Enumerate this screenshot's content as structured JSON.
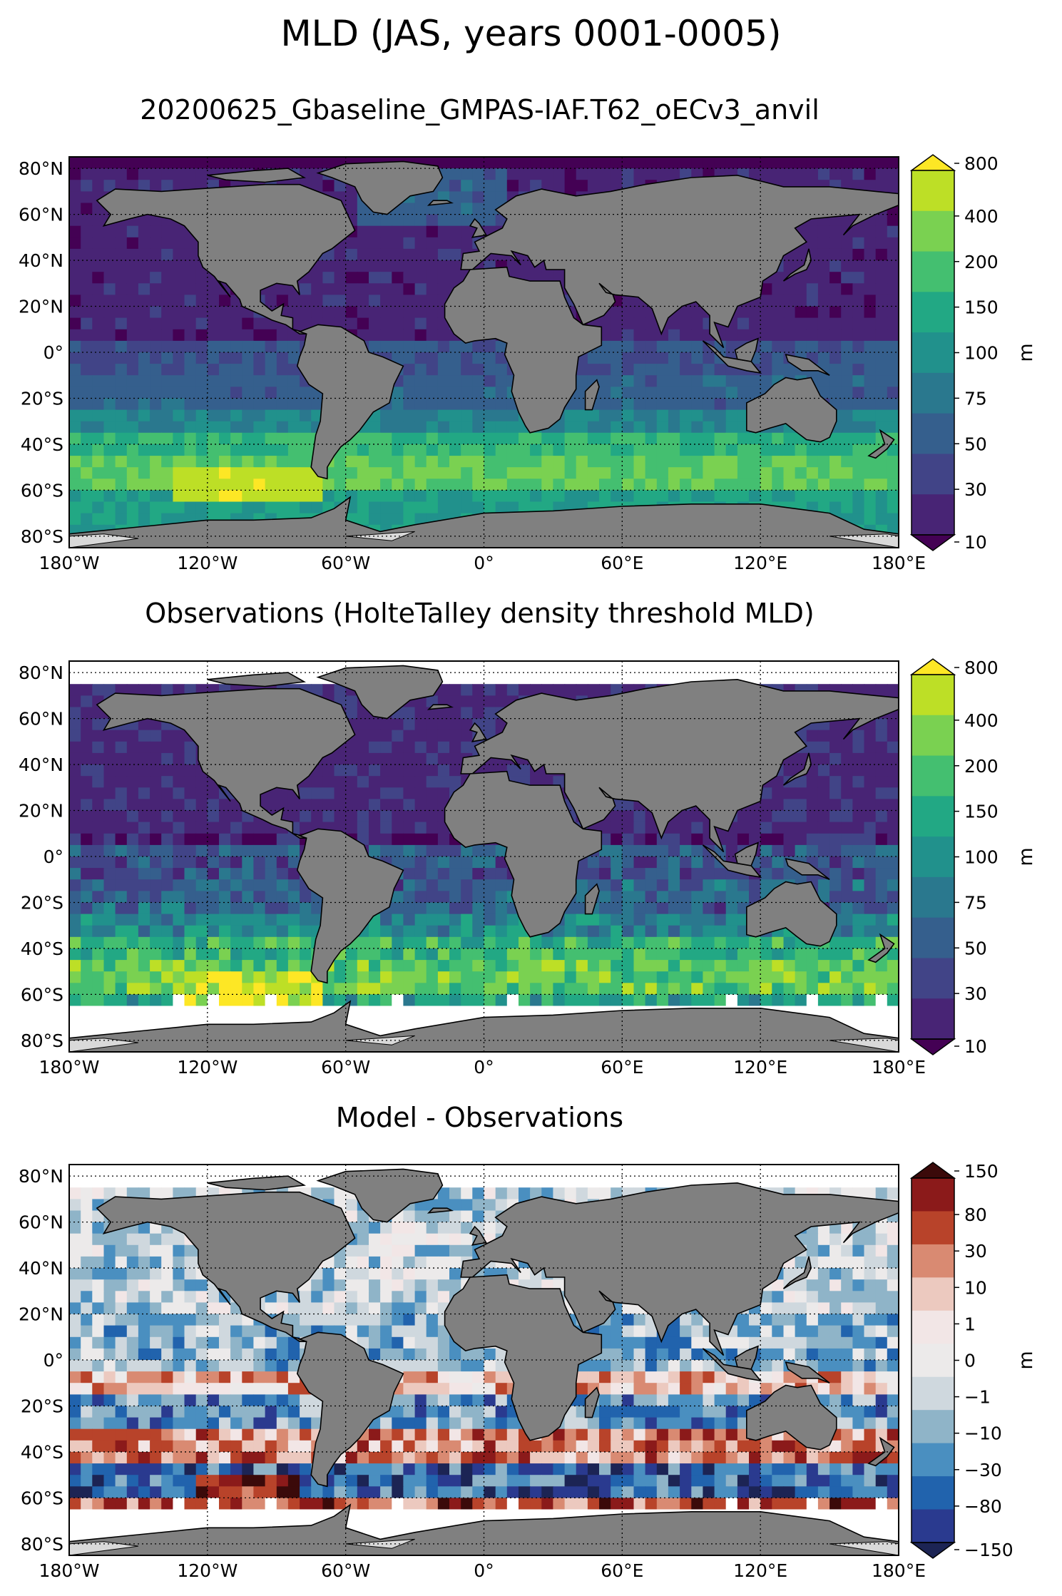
{
  "figure": {
    "title": "MLD (JAS, years 0001-0005)"
  },
  "panels": [
    {
      "title": "20200625_Gbaseline_GMPAS-IAF.T62_oECv3_anvil",
      "kind": "model",
      "colorbar": {
        "label": "m",
        "ticks": [
          "800",
          "400",
          "200",
          "150",
          "100",
          "75",
          "50",
          "30",
          "10"
        ],
        "colors": [
          "#fde725",
          "#bddf26",
          "#7ad151",
          "#44bf70",
          "#22a884",
          "#21918c",
          "#2a788e",
          "#355f8d",
          "#414487",
          "#482475",
          "#440154"
        ]
      }
    },
    {
      "title": "Observations (HolteTalley density threshold MLD)",
      "kind": "obs",
      "colorbar": {
        "label": "m",
        "ticks": [
          "800",
          "400",
          "200",
          "150",
          "100",
          "75",
          "50",
          "30",
          "10"
        ],
        "colors": [
          "#fde725",
          "#bddf26",
          "#7ad151",
          "#44bf70",
          "#22a884",
          "#21918c",
          "#2a788e",
          "#355f8d",
          "#414487",
          "#482475",
          "#440154"
        ]
      }
    },
    {
      "title": "Model - Observations",
      "kind": "diff",
      "colorbar": {
        "label": "m",
        "ticks": [
          "150",
          "80",
          "30",
          "10",
          "1",
          "0",
          "−1",
          "−10",
          "−30",
          "−80",
          "−150"
        ],
        "colors": [
          "#3b0a0a",
          "#8b1a1a",
          "#b8432a",
          "#d98a72",
          "#ecc9bf",
          "#f2e6e6",
          "#eceaea",
          "#cfd8de",
          "#8fb4c8",
          "#4a8fc0",
          "#2163ad",
          "#2a3a8f",
          "#1c2454"
        ]
      }
    }
  ],
  "axes": {
    "lat_labels": [
      "80°N",
      "60°N",
      "40°N",
      "20°N",
      "0°",
      "20°S",
      "40°S",
      "60°S",
      "80°S"
    ],
    "lon_labels": [
      "180°W",
      "120°W",
      "60°W",
      "0°",
      "60°E",
      "120°E",
      "180°E"
    ]
  }
}
